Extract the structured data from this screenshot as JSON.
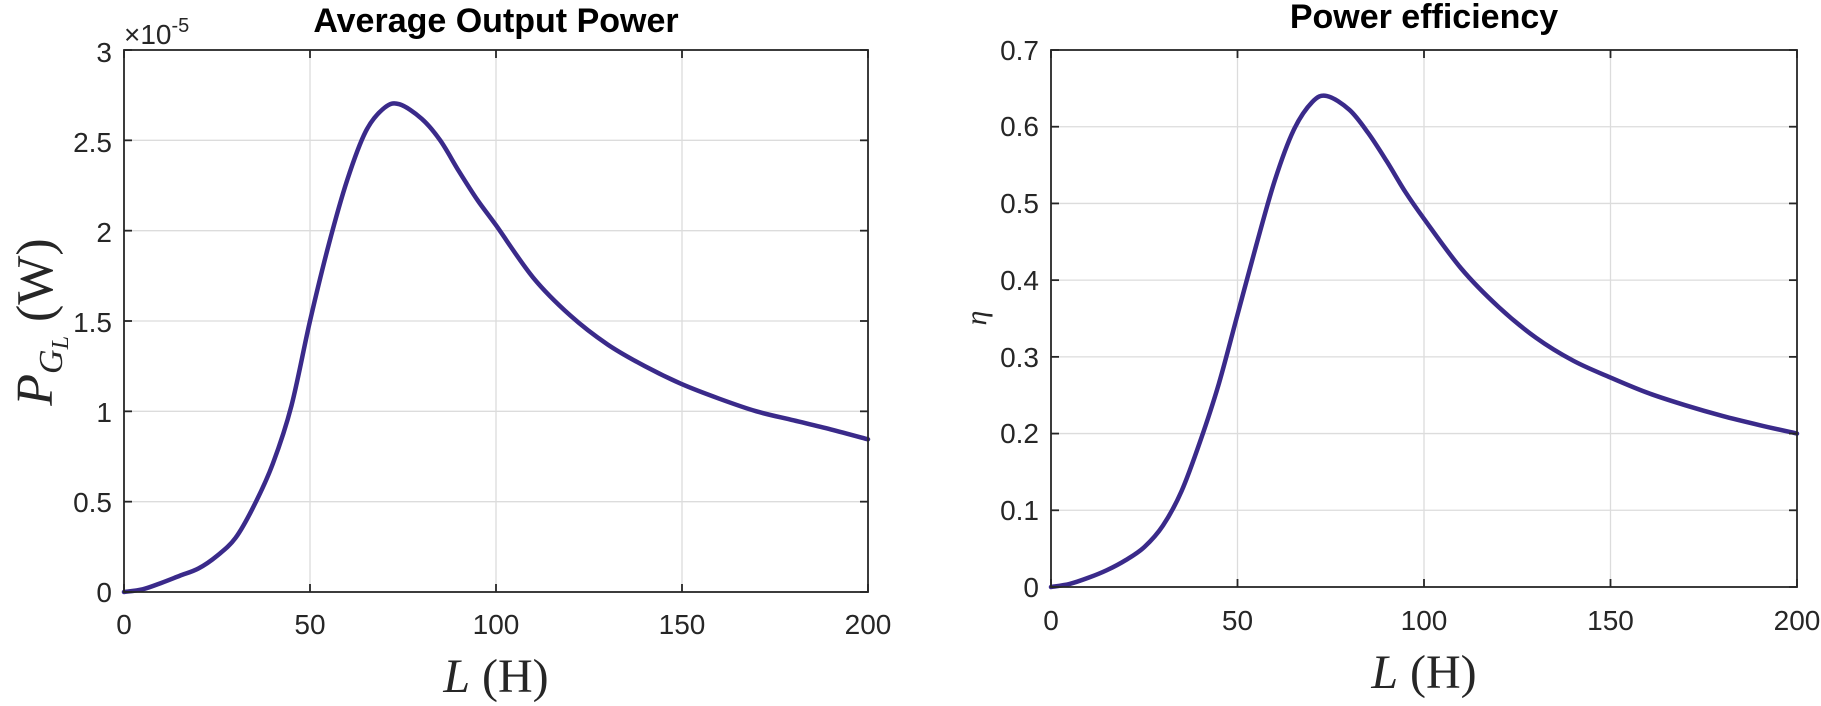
{
  "figure": {
    "panels": [
      {
        "title": "Average Output Power",
        "xlabel_var": "L",
        "xlabel_unit": "(H)",
        "ylabel_var": "P",
        "ylabel_sub": "G",
        "ylabel_subsub": "L",
        "ylabel_unit": "(W)",
        "exponent_label": "×10",
        "exponent_power": "-5",
        "x_ticks": [
          "0",
          "50",
          "100",
          "150",
          "200"
        ],
        "y_ticks": [
          "0",
          "0.5",
          "1",
          "1.5",
          "2",
          "2.5",
          "3"
        ]
      },
      {
        "title": "Power efficiency",
        "xlabel_var": "L",
        "xlabel_unit": "(H)",
        "ylabel_var": "η",
        "x_ticks": [
          "0",
          "50",
          "100",
          "150",
          "200"
        ],
        "y_ticks": [
          "0",
          "0.1",
          "0.2",
          "0.3",
          "0.4",
          "0.5",
          "0.6",
          "0.7"
        ]
      }
    ]
  },
  "chart_data": [
    {
      "type": "line",
      "title": "Average Output Power",
      "xlabel": "L (H)",
      "ylabel": "P_{G_L} (W)",
      "y_scale_factor": "×10^-5",
      "xlim": [
        0,
        200
      ],
      "ylim": [
        0,
        3
      ],
      "x_ticks": [
        0,
        50,
        100,
        150,
        200
      ],
      "y_ticks": [
        0,
        0.5,
        1,
        1.5,
        2,
        2.5,
        3
      ],
      "grid": true,
      "legend": null,
      "color": "#3a2a8a",
      "series": [
        {
          "name": "P_GL",
          "x": [
            0,
            5,
            10,
            15,
            20,
            25,
            30,
            35,
            40,
            45,
            50,
            55,
            60,
            65,
            70,
            74,
            80,
            85,
            90,
            95,
            100,
            110,
            120,
            130,
            140,
            150,
            160,
            170,
            180,
            190,
            200
          ],
          "values": [
            0,
            0.015,
            0.05,
            0.09,
            0.13,
            0.2,
            0.3,
            0.48,
            0.71,
            1.03,
            1.5,
            1.92,
            2.28,
            2.55,
            2.68,
            2.7,
            2.62,
            2.5,
            2.33,
            2.17,
            2.03,
            1.74,
            1.53,
            1.37,
            1.25,
            1.15,
            1.07,
            1.0,
            0.95,
            0.9,
            0.845
          ]
        }
      ]
    },
    {
      "type": "line",
      "title": "Power efficiency",
      "xlabel": "L (H)",
      "ylabel": "η",
      "xlim": [
        0,
        200
      ],
      "ylim": [
        0,
        0.7
      ],
      "x_ticks": [
        0,
        50,
        100,
        150,
        200
      ],
      "y_ticks": [
        0,
        0.1,
        0.2,
        0.3,
        0.4,
        0.5,
        0.6,
        0.7
      ],
      "grid": true,
      "legend": null,
      "color": "#3a2a8a",
      "series": [
        {
          "name": "η",
          "x": [
            0,
            5,
            10,
            15,
            20,
            25,
            30,
            35,
            40,
            45,
            50,
            55,
            60,
            65,
            70,
            74,
            80,
            85,
            90,
            95,
            100,
            110,
            120,
            130,
            140,
            150,
            160,
            170,
            180,
            190,
            200
          ],
          "values": [
            0,
            0.004,
            0.012,
            0.022,
            0.035,
            0.052,
            0.08,
            0.125,
            0.19,
            0.265,
            0.355,
            0.445,
            0.53,
            0.595,
            0.632,
            0.64,
            0.622,
            0.592,
            0.555,
            0.515,
            0.48,
            0.415,
            0.365,
            0.325,
            0.295,
            0.273,
            0.253,
            0.237,
            0.223,
            0.211,
            0.2
          ]
        }
      ]
    }
  ]
}
